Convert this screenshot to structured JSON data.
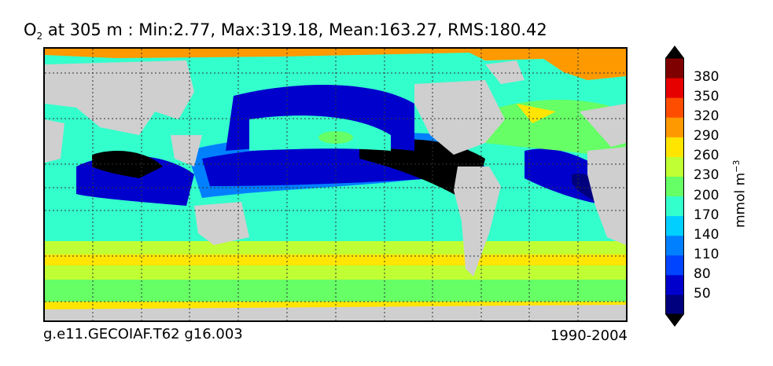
{
  "title": {
    "species": "O",
    "subscript": "2",
    "text": " at 305 m : Min:2.77, Max:319.18, Mean:163.27, RMS:180.42"
  },
  "footer": {
    "case": "g.e11.GECOIAF.T62 g16.003",
    "period": "1990-2004"
  },
  "colorbar": {
    "units_main": "mmol m",
    "units_exp": "−3",
    "ticks": [
      "50",
      "80",
      "110",
      "140",
      "170",
      "200",
      "230",
      "260",
      "290",
      "320",
      "350",
      "380"
    ],
    "colors": [
      "#00007f",
      "#0000cd",
      "#0044ff",
      "#0080ff",
      "#00cfff",
      "#33ffcc",
      "#66ff66",
      "#bfff33",
      "#ffe500",
      "#ff9900",
      "#ff4d00",
      "#e60000",
      "#7f0000"
    ],
    "under_color": "#000000",
    "over_color": "#000000"
  },
  "map_colors": {
    "land": "#cfcfcf",
    "ice": "#ffffff"
  }
}
